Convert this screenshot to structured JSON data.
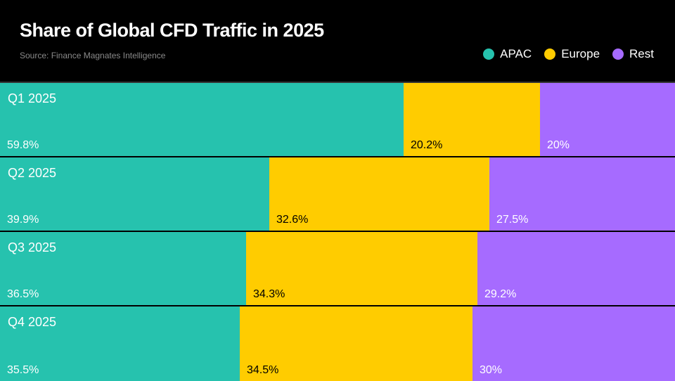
{
  "chart_data": {
    "type": "bar",
    "orientation": "horizontal-stacked-100",
    "title": "Share of Global CFD Traffic in 2025",
    "subtitle": "Source: Finance Magnates Intelligence",
    "categories": [
      "Q1 2025",
      "Q2 2025",
      "Q3 2025",
      "Q4 2025"
    ],
    "series": [
      {
        "name": "APAC",
        "color": "#26C2AE",
        "text_color": "#ffffff",
        "values": [
          59.8,
          39.9,
          36.5,
          35.5
        ],
        "labels": [
          "59.8%",
          "39.9%",
          "36.5%",
          "35.5%"
        ]
      },
      {
        "name": "Europe",
        "color": "#FFCC00",
        "text_color": "#000000",
        "values": [
          20.2,
          32.6,
          34.3,
          34.5
        ],
        "labels": [
          "20.2%",
          "32.6%",
          "34.3%",
          "34.5%"
        ]
      },
      {
        "name": "Rest",
        "color": "#A66BFF",
        "text_color": "#ffffff",
        "values": [
          20,
          27.5,
          29.2,
          30
        ],
        "labels": [
          "20%",
          "27.5%",
          "29.2%",
          "30%"
        ]
      }
    ],
    "legend": "top-right",
    "xlim": [
      0,
      100
    ]
  }
}
